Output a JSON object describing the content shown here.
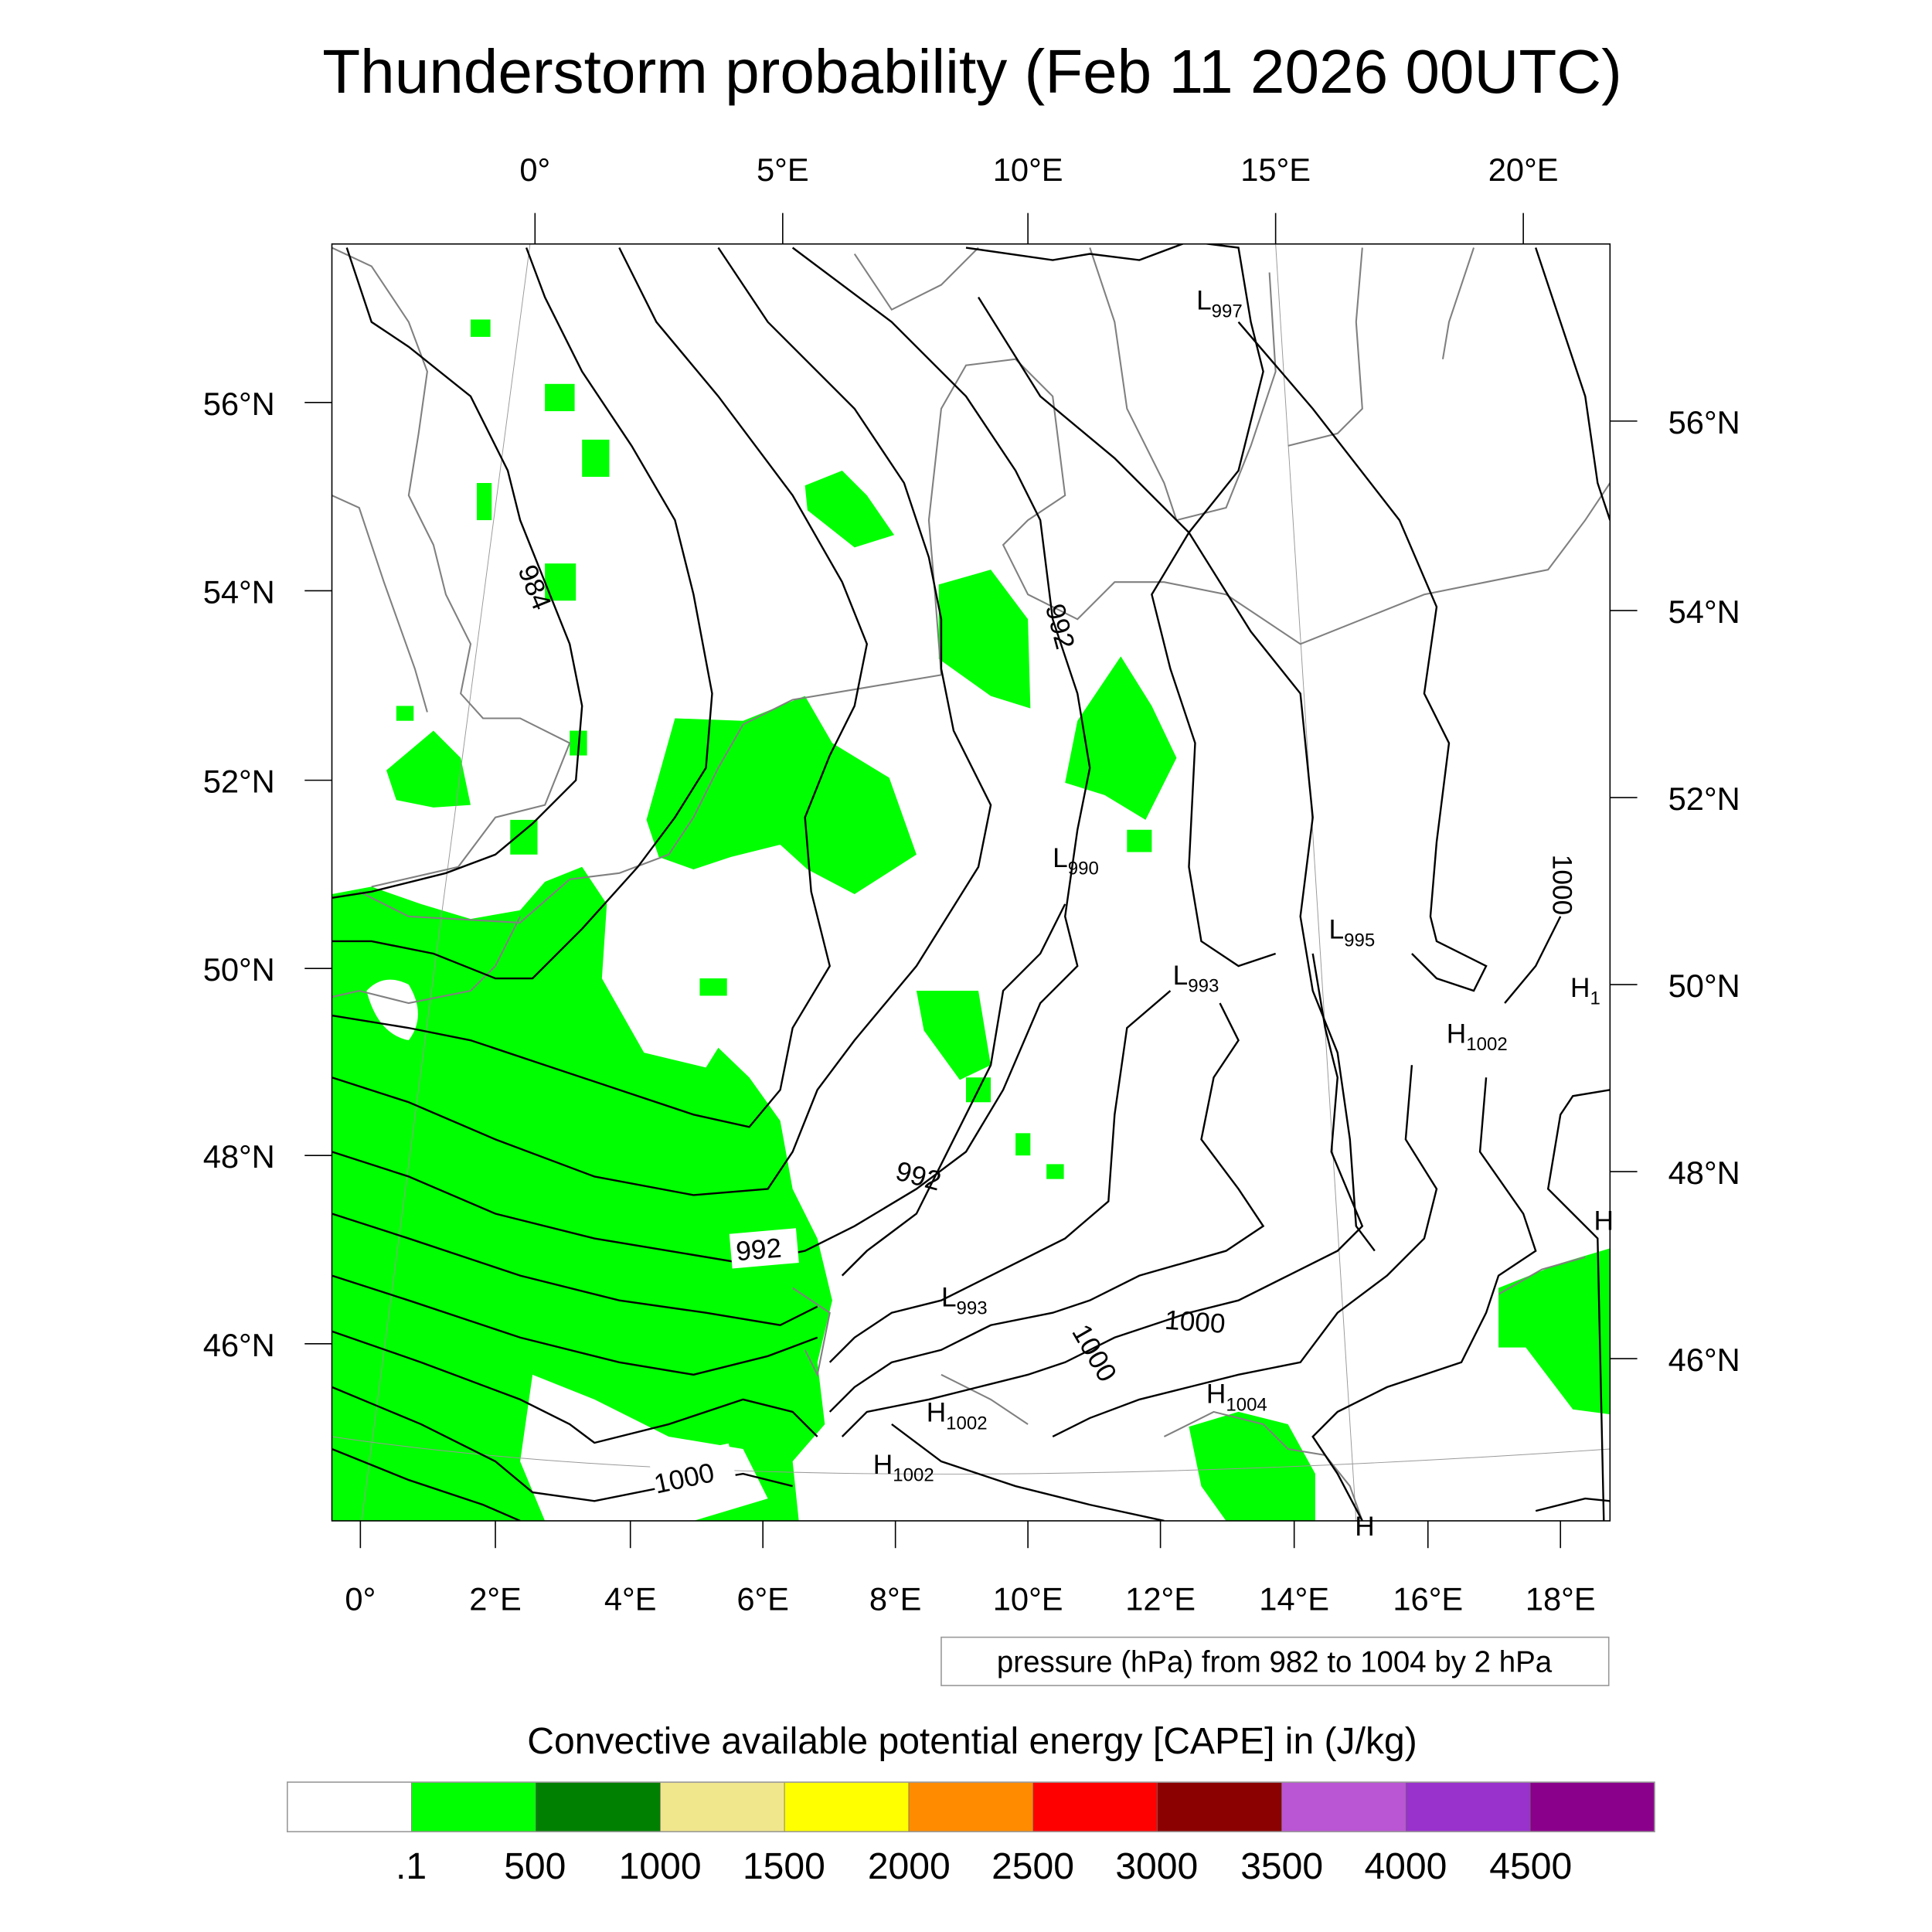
{
  "title": "Thunderstorm probability (Feb 11 2026 00UTC)",
  "axes": {
    "top_lon_labels": [
      "0°",
      "5°E",
      "10°E",
      "15°E",
      "20°E"
    ],
    "bottom_lon_labels": [
      "0°",
      "2°E",
      "4°E",
      "6°E",
      "8°E",
      "10°E",
      "12°E",
      "14°E",
      "16°E",
      "18°E"
    ],
    "left_lat_labels": [
      "56°N",
      "54°N",
      "52°N",
      "50°N",
      "48°N",
      "46°N"
    ],
    "right_lat_labels": [
      "56°N",
      "54°N",
      "52°N",
      "50°N",
      "48°N",
      "46°N"
    ]
  },
  "contour_labels": {
    "isobars": [
      "984",
      "992",
      "992",
      "992",
      "1000",
      "1000",
      "1000",
      "1000"
    ],
    "centers": [
      {
        "type": "L",
        "value": "997"
      },
      {
        "type": "L",
        "value": "990"
      },
      {
        "type": "L",
        "value": "995"
      },
      {
        "type": "L",
        "value": "993"
      },
      {
        "type": "L",
        "value": "993"
      },
      {
        "type": "H",
        "value": "1002"
      },
      {
        "type": "H",
        "value": "1002"
      },
      {
        "type": "H",
        "value": "1002"
      },
      {
        "type": "H",
        "value": "1004"
      },
      {
        "type": "H",
        "value": "1"
      },
      {
        "type": "H",
        "value": ""
      },
      {
        "type": "H",
        "value": ""
      }
    ]
  },
  "pressure_info": "pressure (hPa) from 982 to 1004 by 2 hPa",
  "colorbar": {
    "title": "Convective available potential energy [CAPE] in (J/kg)",
    "colors": [
      "#ffffff",
      "#00ff00",
      "#008000",
      "#f0e68c",
      "#ffff00",
      "#ff8c00",
      "#ff0000",
      "#8b0000",
      "#ba55d3",
      "#9932cc",
      "#8b008b"
    ],
    "labels": [
      ".1",
      "500",
      "1000",
      "1500",
      "2000",
      "2500",
      "3000",
      "3500",
      "4000",
      "4500"
    ]
  }
}
